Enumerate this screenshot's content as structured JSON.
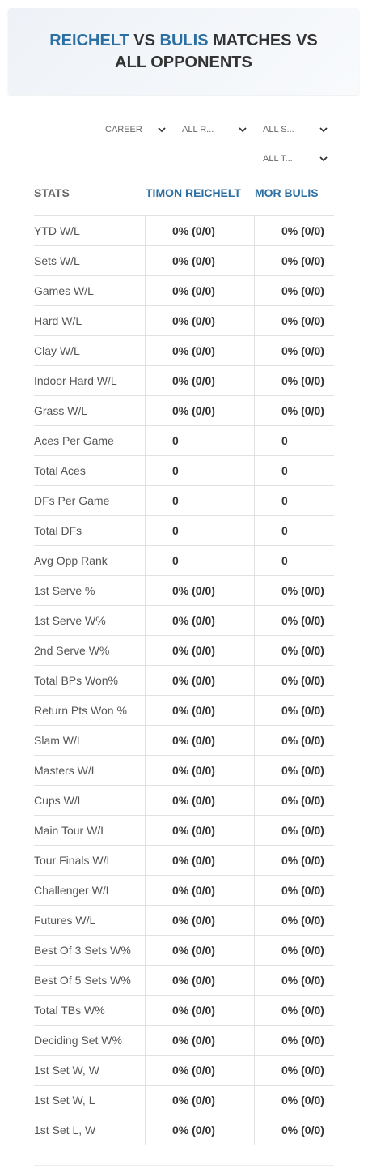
{
  "header": {
    "title_parts": [
      "REICHELT",
      " VS ",
      "BULIS",
      " MATCHES VS ALL OPPONENTS"
    ]
  },
  "filters": [
    "CAREER",
    "ALL R...",
    "ALL S...",
    "ALL T..."
  ],
  "table": {
    "columns": [
      "STATS",
      "TIMON REICHELT",
      "MOR BULIS"
    ],
    "rows": [
      [
        "YTD W/L",
        "0% (0/0)",
        "0% (0/0)"
      ],
      [
        "Sets W/L",
        "0% (0/0)",
        "0% (0/0)"
      ],
      [
        "Games W/L",
        "0% (0/0)",
        "0% (0/0)"
      ],
      [
        "Hard W/L",
        "0% (0/0)",
        "0% (0/0)"
      ],
      [
        "Clay W/L",
        "0% (0/0)",
        "0% (0/0)"
      ],
      [
        "Indoor Hard W/L",
        "0% (0/0)",
        "0% (0/0)"
      ],
      [
        "Grass W/L",
        "0% (0/0)",
        "0% (0/0)"
      ],
      [
        "Aces Per Game",
        0,
        0
      ],
      [
        "Total Aces",
        0,
        0
      ],
      [
        "DFs Per Game",
        0,
        0
      ],
      [
        "Total DFs",
        0,
        0
      ],
      [
        "Avg Opp Rank",
        0,
        0
      ],
      [
        "1st Serve %",
        "0% (0/0)",
        "0% (0/0)"
      ],
      [
        "1st Serve W%",
        "0% (0/0)",
        "0% (0/0)"
      ],
      [
        "2nd Serve W%",
        "0% (0/0)",
        "0% (0/0)"
      ],
      [
        "Total BPs Won%",
        "0% (0/0)",
        "0% (0/0)"
      ],
      [
        "Return Pts Won %",
        "0% (0/0)",
        "0% (0/0)"
      ],
      [
        "Slam W/L",
        "0% (0/0)",
        "0% (0/0)"
      ],
      [
        "Masters W/L",
        "0% (0/0)",
        "0% (0/0)"
      ],
      [
        "Cups W/L",
        "0% (0/0)",
        "0% (0/0)"
      ],
      [
        "Main Tour W/L",
        "0% (0/0)",
        "0% (0/0)"
      ],
      [
        "Tour Finals W/L",
        "0% (0/0)",
        "0% (0/0)"
      ],
      [
        "Challenger W/L",
        "0% (0/0)",
        "0% (0/0)"
      ],
      [
        "Futures W/L",
        "0% (0/0)",
        "0% (0/0)"
      ],
      [
        "Best Of 3 Sets W%",
        "0% (0/0)",
        "0% (0/0)"
      ],
      [
        "Best Of 5 Sets W%",
        "0% (0/0)",
        "0% (0/0)"
      ],
      [
        "Total TBs W%",
        "0% (0/0)",
        "0% (0/0)"
      ],
      [
        "Deciding Set W%",
        "0% (0/0)",
        "0% (0/0)"
      ],
      [
        "1st Set W, W",
        "0% (0/0)",
        "0% (0/0)"
      ],
      [
        "1st Set W, L",
        "0% (0/0)",
        "0% (0/0)"
      ],
      [
        "1st Set L, W",
        "0% (0/0)",
        "0% (0/0)"
      ]
    ]
  }
}
